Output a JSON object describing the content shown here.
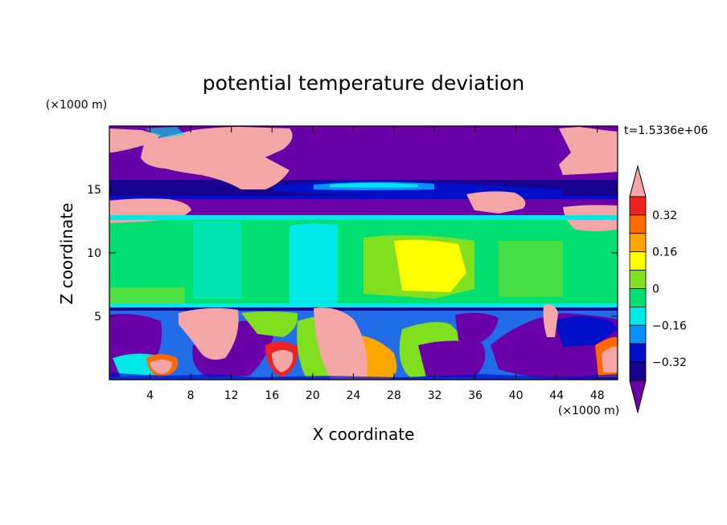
{
  "chart_data": {
    "type": "heatmap",
    "title": "potential temperature deviation",
    "xlabel": "X coordinate",
    "ylabel": "Z coordinate",
    "x_unit": "(×1000 m)",
    "y_unit": "(×1000 m)",
    "time_label": "t=1.5336e+06",
    "xlim": [
      0,
      50
    ],
    "ylim": [
      0,
      20
    ],
    "x_ticks": [
      4,
      8,
      12,
      16,
      20,
      24,
      28,
      32,
      36,
      40,
      44,
      48
    ],
    "y_ticks": [
      5,
      10,
      15
    ],
    "colorbar": {
      "levels": [
        -0.4,
        -0.32,
        -0.24,
        -0.16,
        -0.08,
        0,
        0.08,
        0.16,
        0.24,
        0.32,
        0.4
      ],
      "labeled_ticks": [
        "0.32",
        "0.16",
        "0",
        "−0.16",
        "−0.32"
      ],
      "labeled_values": [
        0.32,
        0.16,
        0,
        -0.16,
        -0.32
      ],
      "colors_top_to_bottom": [
        "#f4a6a6",
        "#ee2222",
        "#ff6a00",
        "#ffa500",
        "#ffff00",
        "#80e020",
        "#00e070",
        "#00e8e8",
        "#0a90ff",
        "#0010c8",
        "#180090",
        "#6a00a8"
      ]
    },
    "regions": [
      {
        "zmin": 0,
        "zmax": 5.8,
        "dominant": "mixed: purple anomalies with pink warm plumes near x≈8–12, 20–26, 43"
      },
      {
        "zmin": 5.8,
        "zmax": 12.5,
        "dominant": "green/cyan band with yellow core near x≈28–36"
      },
      {
        "zmin": 12.5,
        "zmax": 15.5,
        "dominant": "purple/blue layer with pink patches"
      },
      {
        "zmin": 15.5,
        "zmax": 20,
        "dominant": "purple with pink patches near x≈0–8, 10–20, 44–50"
      }
    ]
  }
}
